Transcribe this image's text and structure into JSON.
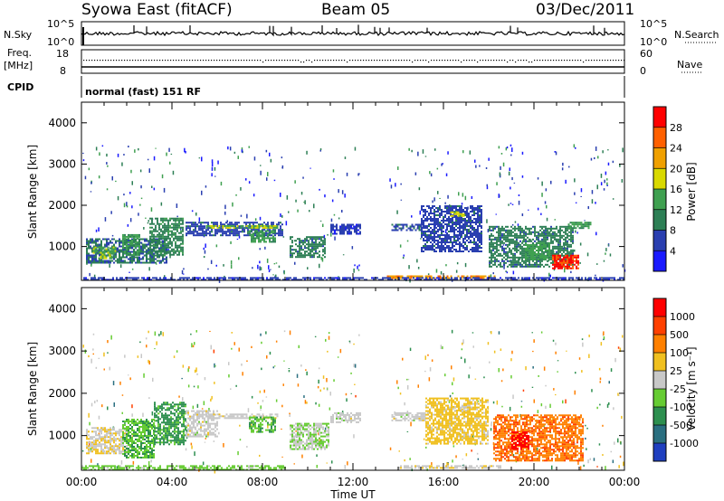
{
  "header": {
    "station": "Syowa East (fitACF)",
    "beam": "Beam 05",
    "date": "03/Dec/2011"
  },
  "strips": {
    "nsky_label": "N.Sky",
    "nsearch_label": "N.Search",
    "nsky_top": "10^5",
    "nsky_bottom": "10^0",
    "freq_label_1": "Freq.",
    "freq_label_2": "[MHz]",
    "freq_top": "18",
    "freq_bottom": "8",
    "nave_label": "Nave",
    "nave_top": "60",
    "nave_bottom": "0",
    "cpid_label": "CPID",
    "cpid_text": "normal (fast) 151 RF"
  },
  "axes": {
    "ylabel": "Slant Range [km]",
    "xlabel": "Time UT",
    "y_ticks": [
      "1000",
      "2000",
      "3000",
      "4000"
    ],
    "x_ticks": [
      "00:00",
      "04:00",
      "08:00",
      "12:00",
      "16:00",
      "20:00",
      "00:00"
    ]
  },
  "colorbars": {
    "power_label": "Power [dB]",
    "power_ticks": [
      "4",
      "8",
      "12",
      "16",
      "20",
      "24",
      "28"
    ],
    "power_colors": [
      "#1a1aff",
      "#2a3fb0",
      "#2d7f55",
      "#3fa050",
      "#d9d900",
      "#f0a000",
      "#ff6000",
      "#ff0000"
    ],
    "velocity_label": "Velocity [m s⁻¹]",
    "velocity_ticks": [
      "1000",
      "500",
      "100",
      "25",
      "-25",
      "-100",
      "-500",
      "-1000"
    ],
    "velocity_colors": [
      "#1f3fbf",
      "#2a6f80",
      "#2d8f4f",
      "#66cc33",
      "#c8c8c8",
      "#f0c020",
      "#ff8000",
      "#ff4000",
      "#ff0000"
    ]
  },
  "chart_data": [
    {
      "type": "heatmap",
      "title": "Power",
      "xlabel": "Time UT",
      "ylabel": "Slant Range [km]",
      "xlim": [
        0,
        24
      ],
      "ylim": [
        180,
        4500
      ],
      "colorbar": "Power [dB]",
      "clim": [
        0,
        30
      ],
      "patches": [
        {
          "t0": 0.2,
          "t1": 3.8,
          "r0": 600,
          "r1": 1200,
          "val": 8
        },
        {
          "t0": 0.5,
          "t1": 1.5,
          "r0": 700,
          "r1": 1000,
          "val": 14
        },
        {
          "t0": 1.8,
          "t1": 2.6,
          "r0": 800,
          "r1": 1300,
          "val": 12
        },
        {
          "t0": 3.0,
          "t1": 4.5,
          "r0": 800,
          "r1": 1700,
          "val": 10
        },
        {
          "t0": 4.6,
          "t1": 8.9,
          "r0": 1250,
          "r1": 1600,
          "val": 6
        },
        {
          "t0": 5.5,
          "t1": 8.7,
          "r0": 1440,
          "r1": 1520,
          "val": 15
        },
        {
          "t0": 7.4,
          "t1": 8.6,
          "r0": 1100,
          "r1": 1400,
          "val": 12
        },
        {
          "t0": 9.2,
          "t1": 10.8,
          "r0": 750,
          "r1": 1250,
          "val": 9
        },
        {
          "t0": 11.0,
          "t1": 12.3,
          "r0": 1300,
          "r1": 1550,
          "val": 5
        },
        {
          "t0": 13.7,
          "t1": 15.0,
          "r0": 1380,
          "r1": 1550,
          "val": 7
        },
        {
          "t0": 15.0,
          "t1": 17.7,
          "r0": 900,
          "r1": 2000,
          "val": 6
        },
        {
          "t0": 16.3,
          "t1": 16.9,
          "r0": 1750,
          "r1": 1850,
          "val": 16
        },
        {
          "t0": 18.0,
          "t1": 21.7,
          "r0": 500,
          "r1": 1500,
          "val": 9
        },
        {
          "t0": 19.6,
          "t1": 20.7,
          "r0": 700,
          "r1": 1100,
          "val": 13
        },
        {
          "t0": 20.8,
          "t1": 22.0,
          "r0": 450,
          "r1": 800,
          "val": 27
        },
        {
          "t0": 21.5,
          "t1": 22.5,
          "r0": 1450,
          "r1": 1600,
          "val": 12
        },
        {
          "t0": 13.5,
          "t1": 18.3,
          "r0": 220,
          "r1": 300,
          "val": 22
        },
        {
          "t0": 0.0,
          "t1": 24.0,
          "r0": 180,
          "r1": 260,
          "val": 5
        }
      ]
    },
    {
      "type": "heatmap",
      "title": "Velocity",
      "xlabel": "Time UT",
      "ylabel": "Slant Range [km]",
      "xlim": [
        0,
        24
      ],
      "ylim": [
        180,
        4500
      ],
      "colorbar": "Velocity [m s⁻¹]",
      "clim": [
        -1000,
        1000
      ],
      "patches": [
        {
          "t0": 0.2,
          "t1": 2.0,
          "r0": 600,
          "r1": 1200,
          "val": 80
        },
        {
          "t0": 1.8,
          "t1": 3.2,
          "r0": 500,
          "r1": 1400,
          "val": -300
        },
        {
          "t0": 3.2,
          "t1": 4.6,
          "r0": 800,
          "r1": 1800,
          "val": -400
        },
        {
          "t0": 4.6,
          "t1": 6.0,
          "r0": 1000,
          "r1": 1600,
          "val": 0
        },
        {
          "t0": 5.5,
          "t1": 8.7,
          "r0": 1420,
          "r1": 1520,
          "val": 10
        },
        {
          "t0": 7.4,
          "t1": 8.6,
          "r0": 1100,
          "r1": 1450,
          "val": -300
        },
        {
          "t0": 9.2,
          "t1": 10.9,
          "r0": 700,
          "r1": 1300,
          "val": -80
        },
        {
          "t0": 11.0,
          "t1": 12.3,
          "r0": 1300,
          "r1": 1550,
          "val": 0
        },
        {
          "t0": 13.7,
          "t1": 15.2,
          "r0": 1350,
          "r1": 1550,
          "val": 0
        },
        {
          "t0": 15.2,
          "t1": 18.0,
          "r0": 800,
          "r1": 1900,
          "val": 200
        },
        {
          "t0": 16.4,
          "t1": 17.0,
          "r0": 1600,
          "r1": 1700,
          "val": 60
        },
        {
          "t0": 18.2,
          "t1": 22.2,
          "r0": 400,
          "r1": 1500,
          "val": 500
        },
        {
          "t0": 19.0,
          "t1": 19.8,
          "r0": 700,
          "r1": 1100,
          "val": 900
        },
        {
          "t0": 14.0,
          "t1": 18.5,
          "r0": 220,
          "r1": 300,
          "val": 50
        },
        {
          "t0": 0.0,
          "t1": 9.0,
          "r0": 180,
          "r1": 300,
          "val": -200
        }
      ]
    }
  ]
}
